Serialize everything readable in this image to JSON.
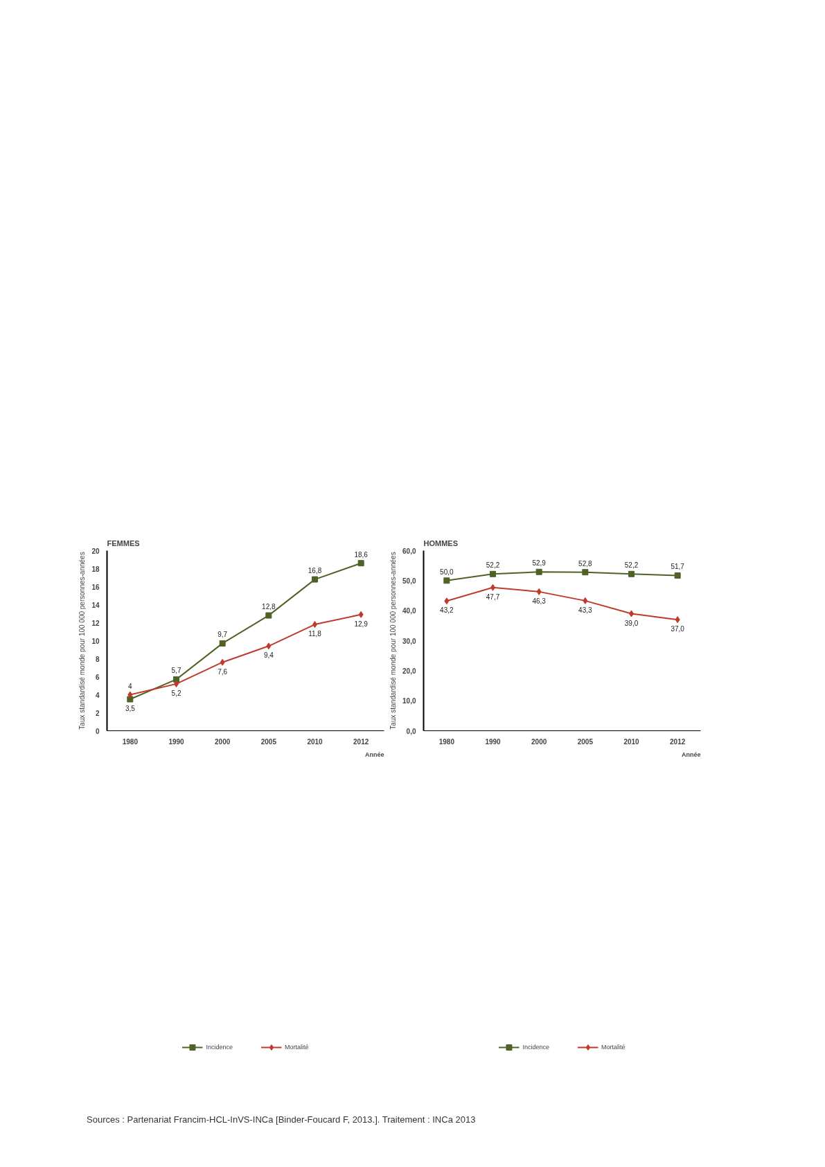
{
  "chart_data": [
    {
      "type": "line",
      "title": "FEMMES",
      "xlabel": "Année",
      "ylabel": "Taux standardisé monde pour 100 000 personnes-années",
      "categories": [
        "1980",
        "1990",
        "2000",
        "2005",
        "2010",
        "2012"
      ],
      "series": [
        {
          "name": "Incidence",
          "color": "#4f6228",
          "marker": "square",
          "values": [
            3.5,
            5.7,
            9.7,
            12.8,
            16.8,
            18.6
          ],
          "value_labels": [
            "3,5",
            "5,7",
            "9,7",
            "12,8",
            "16,8",
            "18,6"
          ]
        },
        {
          "name": "Mortalité",
          "color": "#c0392b",
          "marker": "diamond",
          "values": [
            4,
            5.2,
            7.6,
            9.4,
            11.8,
            12.9
          ],
          "value_labels": [
            "4",
            "5,2",
            "7,6",
            "9,4",
            "11,8",
            "12,9"
          ]
        }
      ],
      "ylim": [
        0,
        20
      ],
      "yticks": [
        0,
        2,
        4,
        6,
        8,
        10,
        12,
        14,
        16,
        18,
        20
      ],
      "grid": false,
      "legend": "bottom",
      "line_style": "solid",
      "annotations": [
        "Sources : Partenariat Francim-HCL-InVS-INCa [Binder-Foucard F, 2013.]. Traitement : INCa 2013"
      ]
    },
    {
      "type": "line",
      "title": "HOMMES",
      "xlabel": "Année",
      "ylabel": "Taux standardisé monde pour 100 000 personnes-années",
      "categories": [
        "1980",
        "1990",
        "2000",
        "2005",
        "2010",
        "2012"
      ],
      "series": [
        {
          "name": "Incidence",
          "color": "#4f6228",
          "marker": "square",
          "values": [
            50.0,
            52.2,
            52.9,
            52.8,
            52.2,
            51.7
          ],
          "value_labels": [
            "50,0",
            "52,2",
            "52,9",
            "52,8",
            "52,2",
            "51,7"
          ]
        },
        {
          "name": "Mortalité",
          "color": "#c0392b",
          "marker": "diamond",
          "values": [
            43.2,
            47.7,
            46.3,
            43.3,
            39.0,
            37.0
          ],
          "value_labels": [
            "43,2",
            "47,7",
            "46,3",
            "43,3",
            "39,0",
            "37,0"
          ]
        }
      ],
      "ylim": [
        0,
        60
      ],
      "yticks": [
        {
          "value": 0,
          "label": "0,0"
        },
        {
          "value": 10,
          "label": "10,0"
        },
        {
          "value": 20,
          "label": "20,0"
        },
        {
          "value": 30,
          "label": "30,0"
        },
        {
          "value": 40,
          "label": "40,0"
        },
        {
          "value": 50,
          "label": "50,0"
        },
        {
          "value": 60,
          "label": "60,0"
        }
      ],
      "grid": false,
      "legend": "bottom",
      "line_style": "solid"
    }
  ]
}
